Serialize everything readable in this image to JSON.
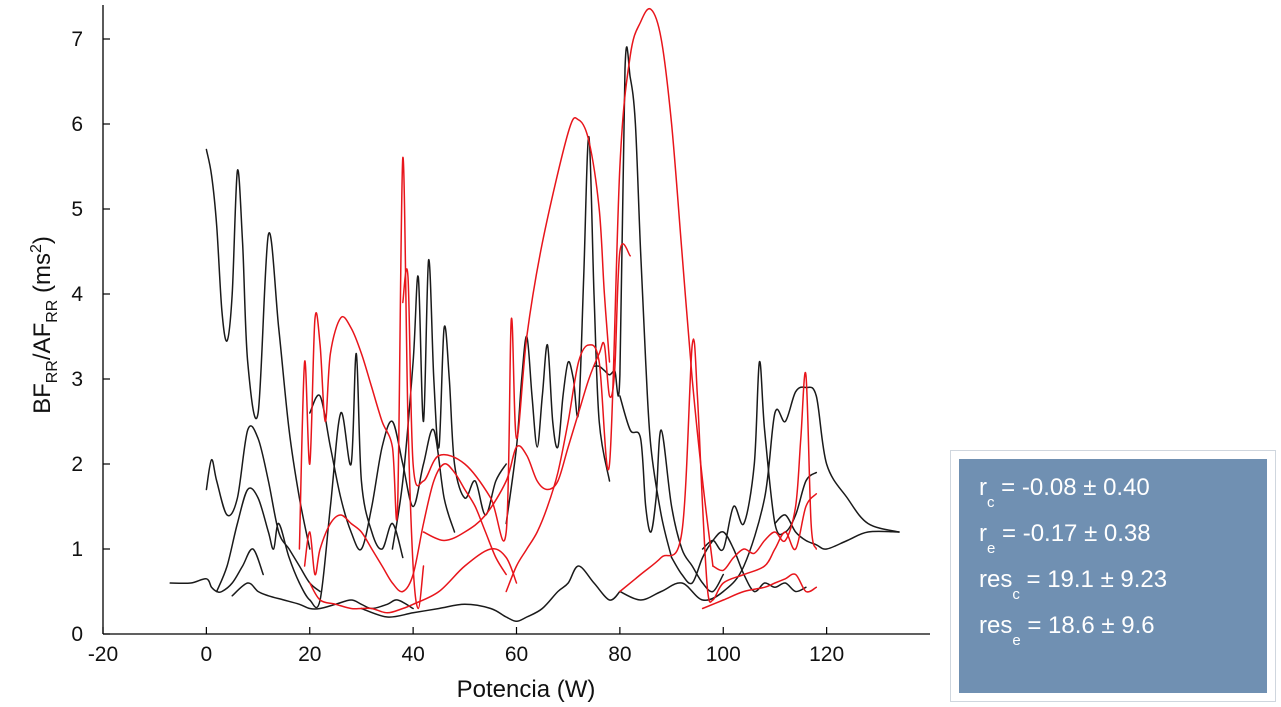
{
  "chart_data": {
    "type": "line",
    "title": "",
    "xlabel": "Potencia (W)",
    "ylabel": {
      "base1": "BF",
      "sub1": "RR",
      "mid": "/AF",
      "sub2": "RR",
      "unit_pre": " (ms",
      "unit_sup": "2",
      "unit_post": ")"
    },
    "xlim": [
      -20,
      140
    ],
    "ylim": [
      0,
      7.4
    ],
    "xticks": [
      -20,
      0,
      20,
      40,
      60,
      80,
      100,
      120
    ],
    "yticks": [
      0,
      1,
      2,
      3,
      4,
      5,
      6,
      7
    ],
    "grid": false,
    "colors": {
      "control": "#1a1a1a",
      "exercise": "#e8151b"
    },
    "series": [
      {
        "color": "control",
        "x": [
          -7,
          -3,
          0,
          1,
          2,
          3,
          5,
          7,
          9,
          11
        ],
        "y": [
          0.6,
          0.6,
          0.65,
          0.55,
          0.5,
          0.5,
          0.6,
          0.8,
          1.0,
          0.7
        ]
      },
      {
        "color": "control",
        "x": [
          0,
          1,
          2,
          3,
          4,
          5,
          6,
          7,
          8,
          10,
          12,
          14,
          16,
          18,
          20
        ],
        "y": [
          5.7,
          5.4,
          4.8,
          3.8,
          3.45,
          4.0,
          5.45,
          4.6,
          3.2,
          2.6,
          4.7,
          3.6,
          2.4,
          1.6,
          1.0
        ]
      },
      {
        "color": "control",
        "x": [
          0,
          1,
          2,
          4,
          6,
          8,
          10,
          12,
          14,
          16,
          18,
          20,
          22
        ],
        "y": [
          1.7,
          2.05,
          1.8,
          1.4,
          1.6,
          2.4,
          2.3,
          1.8,
          1.2,
          1.0,
          0.8,
          0.6,
          0.5
        ]
      },
      {
        "color": "control",
        "x": [
          2,
          4,
          6,
          8,
          10,
          12,
          13,
          14,
          16,
          18,
          20,
          22,
          24,
          26,
          28,
          29,
          30,
          32,
          34,
          36,
          38
        ],
        "y": [
          0.5,
          0.8,
          1.3,
          1.7,
          1.6,
          1.2,
          1.0,
          1.3,
          0.9,
          0.6,
          0.4,
          0.4,
          1.5,
          2.6,
          2.0,
          3.3,
          1.8,
          1.2,
          1.0,
          1.3,
          0.9
        ]
      },
      {
        "color": "control",
        "x": [
          5,
          8,
          10,
          12,
          15,
          18,
          20,
          22,
          25,
          28,
          30,
          32,
          35,
          37,
          40
        ],
        "y": [
          0.45,
          0.6,
          0.5,
          0.45,
          0.4,
          0.35,
          0.3,
          0.3,
          0.35,
          0.4,
          0.35,
          0.3,
          0.35,
          0.4,
          0.3
        ]
      },
      {
        "color": "control",
        "x": [
          20,
          22,
          24,
          26,
          28,
          30,
          32,
          34,
          36,
          38,
          40,
          42,
          44,
          46,
          48
        ],
        "y": [
          2.6,
          2.8,
          2.2,
          1.6,
          1.2,
          1.0,
          1.5,
          2.2,
          2.5,
          2.0,
          1.5,
          2.0,
          2.4,
          1.6,
          1.2
        ]
      },
      {
        "color": "control",
        "x": [
          36,
          38,
          40,
          41,
          42,
          43,
          44,
          45,
          46,
          47,
          48,
          50,
          52,
          54,
          56,
          58
        ],
        "y": [
          1.0,
          1.8,
          3.2,
          4.2,
          2.5,
          4.4,
          3.0,
          2.2,
          3.6,
          3.0,
          2.0,
          1.6,
          1.8,
          1.4,
          1.8,
          2.0
        ]
      },
      {
        "color": "control",
        "x": [
          30,
          35,
          40,
          45,
          50,
          55,
          58,
          60,
          62,
          65,
          68,
          70,
          72,
          75,
          78,
          80
        ],
        "y": [
          0.3,
          0.2,
          0.25,
          0.3,
          0.35,
          0.3,
          0.2,
          0.15,
          0.2,
          0.3,
          0.5,
          0.6,
          0.8,
          0.6,
          0.4,
          0.5
        ]
      },
      {
        "color": "control",
        "x": [
          58,
          60,
          61,
          62,
          63,
          64,
          65,
          66,
          67,
          68,
          69,
          70,
          71,
          72,
          73,
          74,
          75,
          76,
          78
        ],
        "y": [
          1.3,
          2.2,
          3.0,
          3.5,
          2.8,
          2.2,
          2.8,
          3.4,
          2.5,
          2.2,
          2.8,
          3.2,
          3.0,
          2.6,
          4.2,
          5.85,
          4.0,
          2.5,
          1.8
        ]
      },
      {
        "color": "control",
        "x": [
          75,
          76,
          77,
          78,
          79,
          80,
          81,
          82,
          83,
          84,
          85,
          86,
          88,
          90
        ],
        "y": [
          3.15,
          3.15,
          3.1,
          3.05,
          3.1,
          3.05,
          6.65,
          6.55,
          6.0,
          4.5,
          3.2,
          2.2,
          1.4,
          0.9
        ]
      },
      {
        "color": "control",
        "x": [
          80,
          82,
          84,
          85,
          86,
          87,
          88,
          90,
          92,
          94,
          96,
          98,
          100
        ],
        "y": [
          2.8,
          2.4,
          2.3,
          1.5,
          1.2,
          1.6,
          2.4,
          1.5,
          1.0,
          0.8,
          0.6,
          0.5,
          0.7
        ]
      },
      {
        "color": "control",
        "x": [
          80,
          84,
          88,
          92,
          96,
          100,
          104,
          108,
          110,
          112,
          114,
          116,
          118,
          120,
          124,
          128,
          134
        ],
        "y": [
          0.5,
          0.4,
          0.5,
          0.6,
          0.4,
          0.5,
          0.8,
          1.6,
          2.6,
          2.5,
          2.85,
          2.9,
          2.8,
          2.0,
          1.6,
          1.3,
          1.2
        ]
      },
      {
        "color": "control",
        "x": [
          96,
          98,
          100,
          102,
          104,
          106,
          107,
          108,
          110,
          112,
          114,
          116,
          118
        ],
        "y": [
          1.0,
          1.1,
          1.0,
          1.5,
          1.3,
          2.0,
          3.2,
          2.4,
          1.3,
          1.2,
          1.4,
          1.8,
          1.9
        ]
      },
      {
        "color": "control",
        "x": [
          90,
          92,
          94,
          96,
          98,
          100,
          102,
          104,
          106,
          108,
          110,
          112,
          114,
          116
        ],
        "y": [
          0.9,
          0.7,
          0.6,
          0.9,
          1.1,
          1.2,
          1.0,
          0.7,
          0.5,
          0.6,
          0.55,
          0.6,
          0.5,
          0.55
        ]
      },
      {
        "color": "control",
        "x": [
          110,
          112,
          114,
          116,
          118,
          120,
          124,
          128,
          134
        ],
        "y": [
          1.3,
          1.4,
          1.2,
          1.1,
          1.05,
          1.0,
          1.1,
          1.2,
          1.2
        ]
      },
      {
        "color": "exercise",
        "x": [
          18,
          19,
          20,
          21,
          22,
          23,
          24,
          26,
          28,
          30,
          32,
          34,
          36,
          37,
          38,
          39,
          40,
          41,
          42
        ],
        "y": [
          1.0,
          3.2,
          2.0,
          3.7,
          3.4,
          2.5,
          3.3,
          3.72,
          3.6,
          3.3,
          2.9,
          2.5,
          2.2,
          1.5,
          5.6,
          2.5,
          0.8,
          0.3,
          0.8
        ]
      },
      {
        "color": "exercise",
        "x": [
          19,
          20,
          21,
          22,
          24,
          26,
          28,
          30,
          32,
          34,
          36,
          38,
          40,
          42,
          44,
          46,
          48,
          50,
          52,
          54,
          56,
          58
        ],
        "y": [
          0.8,
          1.2,
          0.7,
          1.0,
          1.3,
          1.4,
          1.3,
          1.2,
          1.0,
          0.8,
          0.6,
          0.5,
          0.7,
          1.3,
          1.8,
          2.0,
          1.9,
          1.7,
          1.5,
          1.2,
          0.9,
          0.7
        ]
      },
      {
        "color": "exercise",
        "x": [
          20,
          22,
          25,
          28,
          30,
          32,
          35,
          38,
          40,
          45,
          50,
          55,
          58,
          60
        ],
        "y": [
          0.6,
          0.4,
          0.35,
          0.3,
          0.3,
          0.3,
          0.25,
          0.3,
          0.35,
          0.5,
          0.8,
          1.0,
          0.9,
          0.6
        ]
      },
      {
        "color": "exercise",
        "x": [
          38,
          39,
          40,
          42,
          45,
          50,
          55,
          58,
          59,
          60,
          62,
          65,
          70,
          72,
          74,
          76,
          77,
          78
        ],
        "y": [
          3.9,
          4.2,
          2.0,
          1.8,
          2.1,
          2.0,
          1.6,
          1.2,
          3.7,
          2.3,
          3.5,
          4.6,
          5.9,
          6.05,
          5.8,
          5.0,
          4.0,
          3.2
        ]
      },
      {
        "color": "exercise",
        "x": [
          42,
          46,
          50,
          54,
          58,
          60,
          62,
          64,
          66,
          68,
          70,
          72,
          74,
          76,
          77,
          78,
          79,
          80,
          82
        ],
        "y": [
          1.2,
          1.1,
          1.2,
          1.4,
          1.8,
          2.2,
          2.1,
          1.8,
          1.7,
          1.8,
          2.2,
          2.6,
          3.0,
          3.3,
          3.4,
          2.8,
          3.1,
          4.5,
          4.45
        ]
      },
      {
        "color": "exercise",
        "x": [
          58,
          60,
          62,
          64,
          66,
          68,
          70,
          72,
          74,
          76,
          78,
          80,
          82,
          84,
          86,
          88,
          90,
          92,
          94,
          96,
          98
        ],
        "y": [
          0.5,
          0.8,
          1.0,
          1.2,
          1.5,
          1.9,
          2.5,
          3.2,
          3.4,
          3.2,
          2.0,
          5.5,
          6.8,
          7.2,
          7.35,
          7.0,
          6.0,
          4.5,
          3.0,
          1.8,
          0.8
        ]
      },
      {
        "color": "exercise",
        "x": [
          80,
          84,
          88,
          92,
          94,
          95,
          96,
          97,
          98,
          100,
          104,
          108,
          110,
          112,
          114,
          116,
          118
        ],
        "y": [
          0.5,
          0.7,
          0.9,
          1.2,
          3.4,
          2.8,
          1.5,
          0.5,
          0.4,
          0.6,
          0.7,
          0.8,
          1.0,
          1.2,
          1.0,
          1.5,
          1.65
        ]
      },
      {
        "color": "exercise",
        "x": [
          98,
          100,
          102,
          104,
          106,
          108,
          110,
          112,
          114,
          115,
          116,
          117,
          118
        ],
        "y": [
          0.8,
          0.75,
          0.9,
          1.0,
          0.95,
          1.1,
          1.2,
          1.1,
          1.5,
          2.3,
          3.05,
          1.3,
          1.0
        ]
      },
      {
        "color": "exercise",
        "x": [
          96,
          100,
          104,
          108,
          110,
          112,
          114,
          116,
          118
        ],
        "y": [
          0.3,
          0.4,
          0.5,
          0.55,
          0.6,
          0.65,
          0.7,
          0.5,
          0.55
        ]
      }
    ]
  },
  "stats": [
    {
      "base": "r",
      "sub": "c",
      "rest": " = -0.08 ± 0.40"
    },
    {
      "base": "r",
      "sub": "e",
      "rest": " = -0.17 ± 0.38"
    },
    {
      "base": "res",
      "sub": "c",
      "rest": " = 19.1 ± 9.23"
    },
    {
      "base": "res",
      "sub": "e",
      "rest": " = 18.6 ± 9.6"
    }
  ]
}
